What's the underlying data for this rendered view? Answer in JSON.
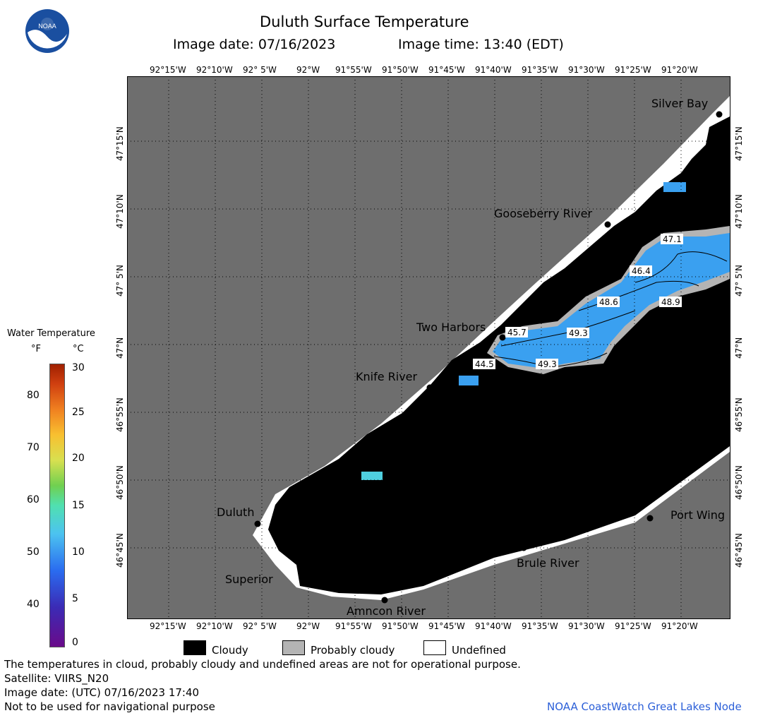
{
  "header": {
    "title": "Duluth Surface Temperature",
    "image_date": "Image date: 07/16/2023",
    "image_time": "Image time: 13:40 (EDT)"
  },
  "map": {
    "lon_ticks": [
      "92°15'W",
      "92°10'W",
      "92° 5'W",
      "92°W",
      "91°55'W",
      "91°50'W",
      "91°45'W",
      "91°40'W",
      "91°35'W",
      "91°30'W",
      "91°25'W",
      "91°20'W"
    ],
    "lat_ticks": [
      "47°15'N",
      "47°10'N",
      "47° 5'N",
      "47°N",
      "46°55'N",
      "46°50'N",
      "46°45'N"
    ],
    "places": [
      {
        "name": "Silver Bay"
      },
      {
        "name": "Gooseberry River"
      },
      {
        "name": "Two Harbors"
      },
      {
        "name": "Knife River"
      },
      {
        "name": "Duluth"
      },
      {
        "name": "Superior"
      },
      {
        "name": "Amncon River"
      },
      {
        "name": "Brule River"
      },
      {
        "name": "Port Wing"
      }
    ],
    "temperature_labels": [
      "47.1",
      "46.4",
      "48.6",
      "48.9",
      "45.7",
      "49.3",
      "44.5",
      "49.3"
    ],
    "colors": {
      "land": "#6e6e6e",
      "cloudy": "#000000",
      "probably_cloudy": "#b4b4b4",
      "undefined": "#ffffff",
      "water_blue": "#3aa0f0"
    }
  },
  "legend": {
    "title": "Water Temperature",
    "unit_f": "°F",
    "unit_c": "°C",
    "f_ticks": [
      "80",
      "70",
      "60",
      "50",
      "40"
    ],
    "c_ticks": [
      "30",
      "25",
      "20",
      "15",
      "10",
      "5",
      "0"
    ],
    "categories": [
      {
        "label": "Cloudy"
      },
      {
        "label": "Probably cloudy"
      },
      {
        "label": "Undefined"
      }
    ]
  },
  "footer": {
    "note": "The temperatures in cloud, probably cloudy and undefined areas are not for operational purpose.",
    "satellite": "Satellite: VIIRS_N20",
    "utc_date": "Image date: (UTC) 07/16/2023  17:40",
    "nav_warning": "Not to be used for navigational purpose",
    "credit": "NOAA CoastWatch Great Lakes Node"
  }
}
